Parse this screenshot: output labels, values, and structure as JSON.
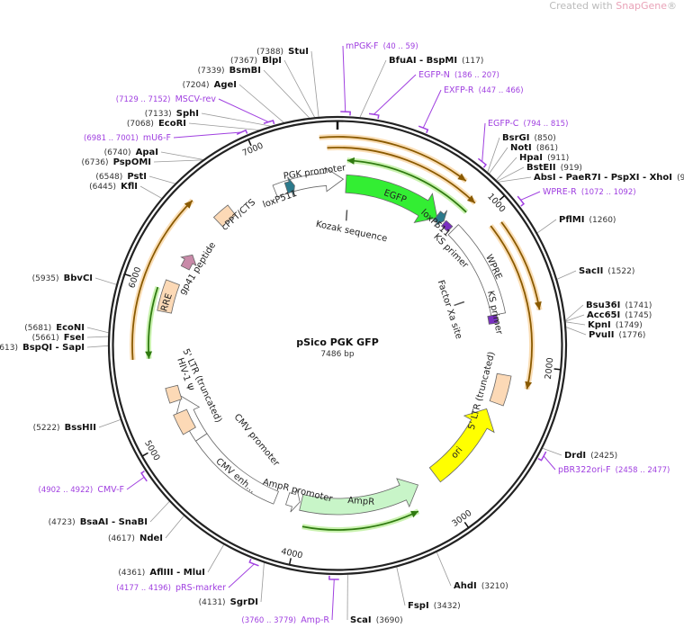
{
  "watermark": {
    "prefix": "Created with ",
    "brand": "SnapGene",
    "reg": "®"
  },
  "plasmid": {
    "name": "pSico PGK GFP",
    "length": "7486 bp"
  },
  "ticks": [
    "1000",
    "2000",
    "3000",
    "4000",
    "5000",
    "6000",
    "7000"
  ],
  "sites": [
    {
      "name": "StuI",
      "pos": 7388
    },
    {
      "name": "BlpI",
      "pos": 7367
    },
    {
      "name": "BsmBI",
      "pos": 7339
    },
    {
      "name": "AgeI",
      "pos": 7204
    },
    {
      "name": "SphI",
      "pos": 7133
    },
    {
      "name": "EcoRI",
      "pos": 7068
    },
    {
      "name": "ApaI",
      "pos": 6740
    },
    {
      "name": "PspOMI",
      "pos": 6736
    },
    {
      "name": "PstI",
      "pos": 6548
    },
    {
      "name": "KflI",
      "pos": 6445
    },
    {
      "name": "BbvCI",
      "pos": 5935
    },
    {
      "name": "EcoNI",
      "pos": 5681
    },
    {
      "name": "FseI",
      "pos": 5661
    },
    {
      "name": "BspQI  -  SapI",
      "pos": 5613
    },
    {
      "name": "BssHII",
      "pos": 5222
    },
    {
      "name": "BsaAI  -  SnaBI",
      "pos": 4723
    },
    {
      "name": "NdeI",
      "pos": 4617
    },
    {
      "name": "AflIII  -  MluI",
      "pos": 4361
    },
    {
      "name": "SgrDI",
      "pos": 4131
    },
    {
      "name": "ScaI",
      "pos": 3690
    },
    {
      "name": "FspI",
      "pos": 3432
    },
    {
      "name": "AhdI",
      "pos": 3210
    },
    {
      "name": "DrdI",
      "pos": 2425
    },
    {
      "name": "PvuII",
      "pos": 1776
    },
    {
      "name": "KpnI",
      "pos": 1749
    },
    {
      "name": "Acc65I",
      "pos": 1745
    },
    {
      "name": "Bsu36I",
      "pos": 1741
    },
    {
      "name": "SacII",
      "pos": 1522
    },
    {
      "name": "PflMI",
      "pos": 1260
    },
    {
      "name": "AbsI  -  PaeR7I  -  PspXI  -  XhoI",
      "pos": 926
    },
    {
      "name": "BstEII",
      "pos": 919
    },
    {
      "name": "HpaI",
      "pos": 911
    },
    {
      "name": "NotI",
      "pos": 861
    },
    {
      "name": "BsrGI",
      "pos": 850
    },
    {
      "name": "BfuAI  -  BspMI",
      "pos": 117
    }
  ],
  "primers": [
    {
      "name": "MSCV-rev",
      "range": "7129 .. 7152"
    },
    {
      "name": "mU6-F",
      "range": "6981 .. 7001"
    },
    {
      "name": "CMV-F",
      "range": "4902 .. 4922"
    },
    {
      "name": "pRS-marker",
      "range": "4177 .. 4196"
    },
    {
      "name": "Amp-R",
      "range": "3760 .. 3779"
    },
    {
      "name": "pBR322ori-F",
      "range": "2458 .. 2477"
    },
    {
      "name": "WPRE-R",
      "range": "1072 .. 1092"
    },
    {
      "name": "EGFP-C",
      "range": "794 .. 815"
    },
    {
      "name": "EXFP-R",
      "range": "447 .. 466"
    },
    {
      "name": "EGFP-N",
      "range": "186 .. 207"
    },
    {
      "name": "mPGK-F",
      "range": "40 .. 59"
    }
  ],
  "features": {
    "pgk_promoter": "PGK promoter",
    "loxp511_a": "loxP511",
    "egfp": "EGFP",
    "loxp511_b": "loxP511",
    "kozak": "Kozak sequence",
    "ks_primer_a": "KS primer",
    "wpre": "WPRE",
    "ks_primer_b": "KS primer",
    "factor_xa": "Factor Xa site",
    "ltr_right": "5' LTR (truncated)",
    "ori": "ori",
    "ampr": "AmpR",
    "ampr_promoter": "AmpR promoter",
    "cmv_enh": "CMV enh...",
    "cmv_promoter": "CMV promoter",
    "ltr_left": "5' LTR (truncated)",
    "hiv_psi": "HIV-1 Ψ",
    "rre": "RRE",
    "gp41": "gp41 peptide",
    "cppt": "cPPT/CTS"
  },
  "colors": {
    "backbone": "#222222",
    "primer": "#a040e0",
    "egfp": "#33ee33",
    "ori": "#ffff00",
    "ampr": "#c8f5c8",
    "ltr": "#fcd9b6",
    "loxp": "#2b7a8c",
    "gp41": "#c88aa8",
    "primer_bind_orange": "#8a5a00",
    "primer_bind_green": "#2f7a10"
  }
}
